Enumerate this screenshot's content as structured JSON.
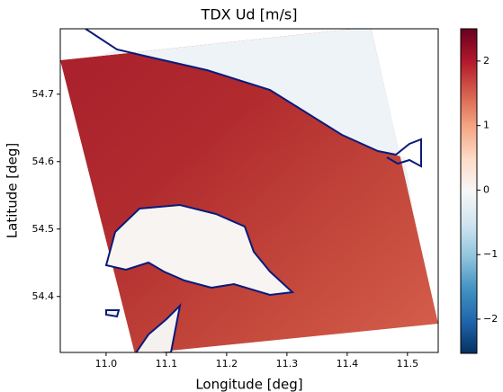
{
  "chart_data": {
    "type": "image",
    "title": "TDX Ud [m/s]",
    "x_label": "Longitude [deg]",
    "y_label": "Latitude [deg]",
    "xlim": [
      10.924,
      11.551
    ],
    "ylim": [
      54.317,
      54.797
    ],
    "xticks": [
      {
        "value": 11,
        "label": "11.0"
      },
      11.1,
      11.2,
      11.3,
      11.4,
      11.5
    ],
    "yticks": [
      54.4,
      54.5,
      54.6,
      54.7
    ],
    "colorbar_lim": [
      -2.53,
      2.5
    ],
    "colorbar_ticks": [
      {
        "value": -2,
        "label": "−2"
      },
      {
        "value": -1,
        "label": "−1"
      },
      0,
      1,
      2
    ]
  }
}
